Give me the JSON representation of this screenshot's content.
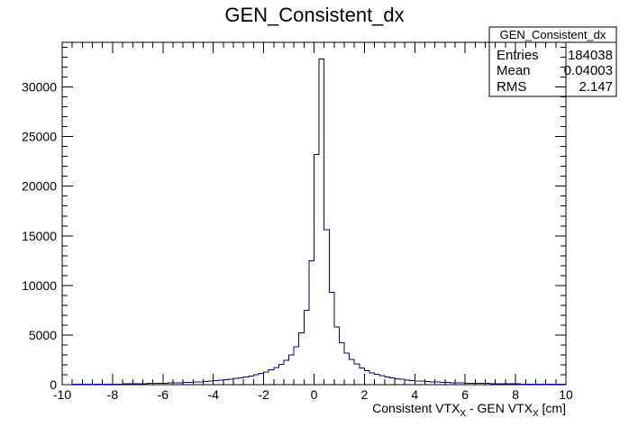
{
  "chart_data": {
    "type": "histogram",
    "title": "GEN_Consistent_dx",
    "xlabel": {
      "prefix": "Consistent VTX",
      "subscript1": "X",
      "middle": " - GEN VTX",
      "subscript2": "X",
      "suffix": " [cm]"
    },
    "ylabel": "",
    "xlim": [
      -10,
      10
    ],
    "ylim": [
      0,
      34500
    ],
    "x_ticks": [
      -10,
      -8,
      -6,
      -4,
      -2,
      0,
      2,
      4,
      6,
      8,
      10
    ],
    "y_ticks": [
      0,
      5000,
      10000,
      15000,
      20000,
      25000,
      30000
    ],
    "grid": false,
    "line_color": "#00007a",
    "bin_width": 0.2,
    "bin_edges_start": -10,
    "values": [
      20,
      22,
      25,
      28,
      30,
      34,
      38,
      42,
      46,
      52,
      58,
      64,
      70,
      78,
      86,
      95,
      105,
      115,
      126,
      138,
      150,
      165,
      180,
      198,
      218,
      240,
      265,
      292,
      322,
      356,
      395,
      440,
      490,
      548,
      615,
      692,
      780,
      880,
      996,
      1130,
      1290,
      1480,
      1720,
      2030,
      2440,
      3000,
      3800,
      5200,
      7500,
      12500,
      23200,
      32800,
      15600,
      9300,
      5800,
      4200,
      3200,
      2550,
      2070,
      1700,
      1420,
      1200,
      1030,
      890,
      775,
      680,
      600,
      532,
      475,
      425,
      382,
      345,
      313,
      285,
      260,
      238,
      218,
      200,
      184,
      170,
      157,
      145,
      134,
      124,
      115,
      106,
      98,
      91,
      84,
      78,
      72,
      66,
      61,
      56,
      52,
      48,
      44,
      40,
      36,
      32
    ]
  },
  "stats_box": {
    "title": "GEN_Consistent_dx",
    "rows": [
      {
        "label": "Entries",
        "value": "184038"
      },
      {
        "label": "Mean",
        "value": "0.04003"
      },
      {
        "label": "RMS",
        "value": "2.147"
      }
    ]
  }
}
